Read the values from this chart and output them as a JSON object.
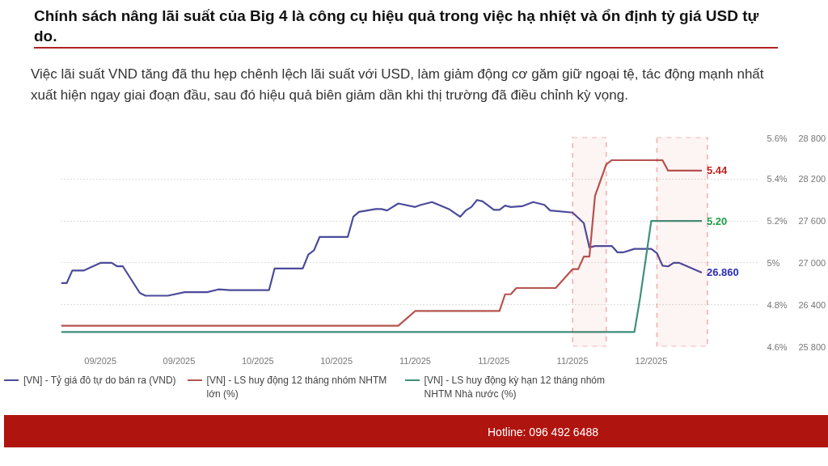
{
  "chart_data": {
    "type": "line",
    "title": "Chính sách nâng lãi suất của Big 4 là công cụ hiệu quả trong việc hạ nhiệt và ổn định tỷ giá USD tự do.",
    "subtitle": "Việc lãi suất VND tăng đã thu hẹp chênh lệch lãi suất với USD, làm giảm động cơ găm giữ ngoại tệ, tác động mạnh nhất xuất hiện ngay giai đoạn đầu, sau đó hiệu quả biên giảm dần khi thị trường đã điều chỉnh kỳ vọng.",
    "series": [
      {
        "name": "[VN] - Tỷ giá đô tự do bán ra (VND)",
        "color": "#4b4b9b",
        "axis": "y2",
        "x": [
          "2025-08-30",
          "2025-08-31",
          "2025-09-01",
          "2025-09-03",
          "2025-09-06",
          "2025-09-08",
          "2025-09-09",
          "2025-09-10",
          "2025-09-13",
          "2025-09-14",
          "2025-09-18",
          "2025-09-21",
          "2025-09-25",
          "2025-09-27",
          "2025-09-29",
          "2025-10-06",
          "2025-10-07",
          "2025-10-12",
          "2025-10-13",
          "2025-10-14",
          "2025-10-15",
          "2025-10-20",
          "2025-10-21",
          "2025-10-22",
          "2025-10-25",
          "2025-10-26",
          "2025-10-27",
          "2025-10-29",
          "2025-11-01",
          "2025-11-02",
          "2025-11-04",
          "2025-11-07",
          "2025-11-09",
          "2025-11-10",
          "2025-11-11",
          "2025-11-12",
          "2025-11-13",
          "2025-11-15",
          "2025-11-16",
          "2025-11-17",
          "2025-11-18",
          "2025-11-20",
          "2025-11-22",
          "2025-11-24",
          "2025-11-25",
          "2025-11-29",
          "2025-12-01",
          "2025-12-02",
          "2025-12-03",
          "2025-12-06",
          "2025-12-07",
          "2025-12-08",
          "2025-12-10",
          "2025-12-13",
          "2025-12-14",
          "2025-12-15",
          "2025-12-16",
          "2025-12-17",
          "2025-12-18",
          "2025-12-22"
        ],
        "values": [
          26710,
          26710,
          26890,
          26890,
          27000,
          27000,
          26950,
          26950,
          26570,
          26530,
          26530,
          26580,
          26580,
          26620,
          26610,
          26610,
          26920,
          26920,
          27120,
          27180,
          27370,
          27370,
          27660,
          27730,
          27770,
          27770,
          27750,
          27850,
          27800,
          27830,
          27870,
          27770,
          27660,
          27750,
          27800,
          27900,
          27880,
          27760,
          27760,
          27820,
          27800,
          27810,
          27870,
          27830,
          27750,
          27720,
          27570,
          27220,
          27240,
          27240,
          27150,
          27150,
          27200,
          27200,
          27140,
          26960,
          26950,
          27000,
          27000,
          26860
        ]
      },
      {
        "name": "[VN] - LS huy động 12 tháng nhóm NHTM lớn (%)",
        "color": "#b5544e",
        "x": [
          "2025-08-30",
          "2025-10-29",
          "2025-11-01",
          "2025-11-16",
          "2025-11-17",
          "2025-11-18",
          "2025-11-19",
          "2025-11-26",
          "2025-11-29",
          "2025-11-30",
          "2025-12-01",
          "2025-12-02",
          "2025-12-03",
          "2025-12-05",
          "2025-12-06",
          "2025-12-15",
          "2025-12-16",
          "2025-12-22"
        ],
        "values": [
          4.7,
          4.7,
          4.77,
          4.77,
          4.85,
          4.85,
          4.88,
          4.88,
          4.97,
          4.97,
          5.03,
          5.03,
          5.32,
          5.47,
          5.49,
          5.49,
          5.44,
          5.44
        ]
      },
      {
        "name": "[VN] - LS huy động kỳ hạn 12 tháng nhóm NHTM Nhà nước (%)",
        "color": "#3f8f7a",
        "x": [
          "2025-08-30",
          "2025-12-10",
          "2025-12-11",
          "2025-12-13",
          "2025-12-22"
        ],
        "values": [
          4.67,
          4.67,
          4.83,
          5.2,
          5.2
        ]
      }
    ],
    "xlim": [
      "2025-08-30",
      "2026-01-01"
    ],
    "xticks": [
      {
        "value": "2025-09-06",
        "label": "09/2025"
      },
      {
        "value": "2025-09-20",
        "label": "09/2025"
      },
      {
        "value": "2025-10-04",
        "label": "10/2025"
      },
      {
        "value": "2025-10-18",
        "label": "10/2025"
      },
      {
        "value": "2025-11-01",
        "label": "11/2025"
      },
      {
        "value": "2025-11-15",
        "label": "11/2025"
      },
      {
        "value": "2025-11-29",
        "label": "11/2025"
      },
      {
        "value": "2025-12-13",
        "label": "12/2025"
      }
    ],
    "ylim": [
      4.6,
      5.6
    ],
    "yticks": [
      {
        "value": 4.6,
        "label": "4.6%"
      },
      {
        "value": 4.8,
        "label": "4.8%"
      },
      {
        "value": 5.0,
        "label": "5%"
      },
      {
        "value": 5.2,
        "label": "5.2%"
      },
      {
        "value": 5.4,
        "label": "5.4%"
      },
      {
        "value": 5.6,
        "label": "5.6%"
      }
    ],
    "y2lim": [
      25800,
      28800
    ],
    "y2ticks": [
      {
        "value": 25800,
        "label": "25 800"
      },
      {
        "value": 26400,
        "label": "26 400"
      },
      {
        "value": 27000,
        "label": "27 000"
      },
      {
        "value": 27600,
        "label": "27 600"
      },
      {
        "value": 28200,
        "label": "28 200"
      },
      {
        "value": 28800,
        "label": "28 800"
      }
    ],
    "bands": [
      {
        "axis": "x",
        "from": "2025-11-29",
        "to": "2025-12-05",
        "color": "#e02020"
      },
      {
        "axis": "x",
        "from": "2025-12-14",
        "to": "2025-12-23",
        "color": "#e02020"
      }
    ],
    "annotations": [
      "26.860",
      {
        "text": "5.44",
        "x": "2025-12-22",
        "y": 5.44
      },
      {
        "text": "5.20",
        "x": "2025-12-22",
        "y": 5.2
      },
      "Hotline: 096 492 6488"
    ],
    "grid": "y",
    "legend": "bottom",
    "line_style": "solid",
    "marker": "none"
  }
}
